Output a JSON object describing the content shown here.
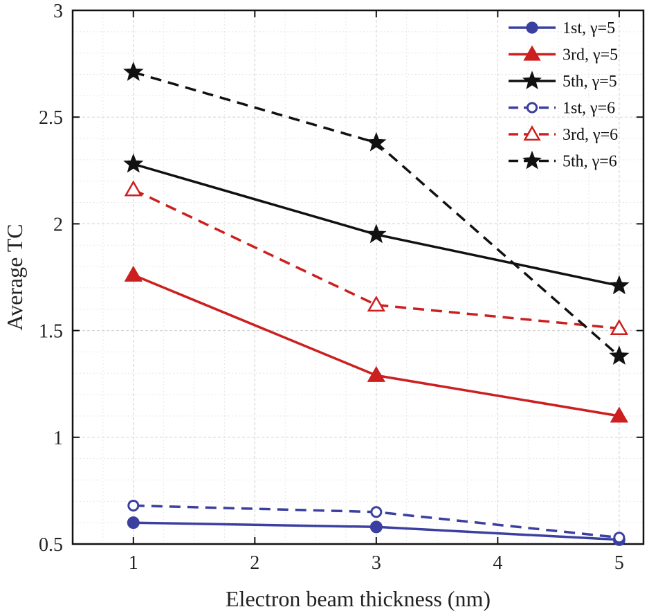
{
  "chart_data": {
    "type": "line",
    "xlabel": "Electron beam thickness (nm)",
    "ylabel": "Average TC",
    "xlim": [
      0.5,
      5.2
    ],
    "ylim": [
      0.5,
      3
    ],
    "xticks": [
      1,
      2,
      3,
      4,
      5
    ],
    "yticks": [
      0.5,
      1,
      1.5,
      2,
      2.5,
      3
    ],
    "ytick_labels": [
      "0.5",
      "1",
      "1.5",
      "2",
      "2.5",
      "3"
    ],
    "grid": true,
    "legend_position": "top-right",
    "series": [
      {
        "name": "1st, γ=5",
        "color": "#3a3fa0",
        "dashed": false,
        "marker": "circle-filled",
        "x": [
          1,
          3,
          5
        ],
        "y": [
          0.6,
          0.58,
          0.52
        ]
      },
      {
        "name": "3rd, γ=5",
        "color": "#cc1f1f",
        "dashed": false,
        "marker": "triangle-filled",
        "x": [
          1,
          3,
          5
        ],
        "y": [
          1.76,
          1.29,
          1.1
        ]
      },
      {
        "name": "5th, γ=5",
        "color": "#111111",
        "dashed": false,
        "marker": "star",
        "x": [
          1,
          3,
          5
        ],
        "y": [
          2.28,
          1.95,
          1.71
        ]
      },
      {
        "name": "1st, γ=6",
        "color": "#3a3fa0",
        "dashed": true,
        "marker": "circle-open",
        "x": [
          1,
          3,
          5
        ],
        "y": [
          0.68,
          0.65,
          0.53
        ]
      },
      {
        "name": "3rd, γ=6",
        "color": "#cc1f1f",
        "dashed": true,
        "marker": "triangle-open",
        "x": [
          1,
          3,
          5
        ],
        "y": [
          2.16,
          1.62,
          1.51
        ]
      },
      {
        "name": "5th, γ=6",
        "color": "#111111",
        "dashed": true,
        "marker": "star",
        "x": [
          1,
          3,
          5
        ],
        "y": [
          2.71,
          2.38,
          1.38
        ]
      }
    ]
  }
}
